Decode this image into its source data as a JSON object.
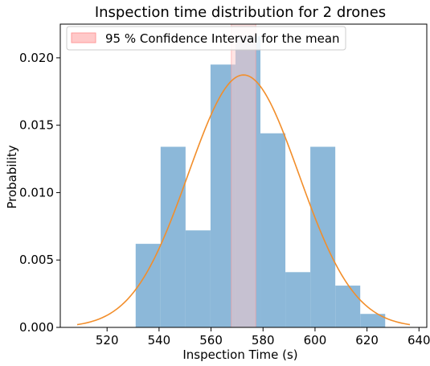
{
  "chart_data": {
    "type": "bar",
    "title": "Inspection time distribution for 2 drones",
    "xlabel": "Inspection Time (s)",
    "ylabel": "Probability",
    "xlim": [
      502,
      643
    ],
    "ylim": [
      0,
      0.0225
    ],
    "xticks": [
      520,
      540,
      560,
      580,
      600,
      620,
      640
    ],
    "yticks": [
      0.0,
      0.005,
      0.01,
      0.015,
      0.02
    ],
    "ytick_labels": [
      "0.000",
      "0.005",
      "0.010",
      "0.015",
      "0.020"
    ],
    "grid": false,
    "legend_position": "top-left",
    "histogram": {
      "color": "#8cb8d9",
      "bins": [
        {
          "start": 531.0,
          "end": 540.6,
          "value": 0.0062
        },
        {
          "start": 540.6,
          "end": 550.2,
          "value": 0.0134
        },
        {
          "start": 550.2,
          "end": 559.8,
          "value": 0.0072
        },
        {
          "start": 559.8,
          "end": 569.4,
          "value": 0.0195
        },
        {
          "start": 569.4,
          "end": 579.0,
          "value": 0.0216
        },
        {
          "start": 579.0,
          "end": 588.6,
          "value": 0.0144
        },
        {
          "start": 588.6,
          "end": 598.2,
          "value": 0.0041
        },
        {
          "start": 598.2,
          "end": 607.8,
          "value": 0.0134
        },
        {
          "start": 607.8,
          "end": 617.4,
          "value": 0.0031
        },
        {
          "start": 617.4,
          "end": 627.0,
          "value": 0.001
        }
      ]
    },
    "normal_curve": {
      "color": "#f28e2b",
      "mean": 572.5,
      "std": 21.3,
      "x_range": [
        508.5,
        636.5
      ]
    },
    "confidence_interval": {
      "label": "95 % Confidence Interval for the mean",
      "low": 567.8,
      "high": 577.2,
      "fill": "#ffc9c9",
      "edge": "#ff9a9a"
    }
  }
}
